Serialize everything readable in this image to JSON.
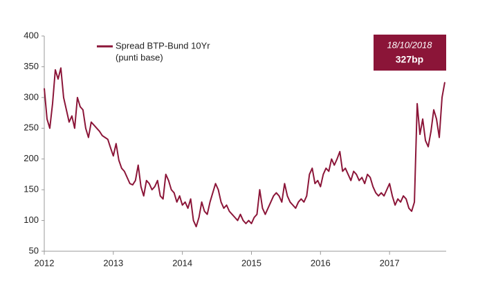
{
  "chart_data": {
    "type": "line",
    "series": [
      {
        "name": "Spread BTP-Bund 10Yr",
        "color": "#8b1538",
        "values": [
          315,
          265,
          250,
          290,
          345,
          330,
          348,
          300,
          280,
          260,
          270,
          250,
          300,
          285,
          280,
          250,
          235,
          260,
          255,
          250,
          245,
          238,
          235,
          232,
          218,
          205,
          225,
          198,
          185,
          180,
          170,
          160,
          158,
          165,
          190,
          155,
          140,
          165,
          160,
          150,
          155,
          165,
          140,
          135,
          175,
          165,
          150,
          145,
          130,
          140,
          125,
          130,
          120,
          135,
          100,
          90,
          105,
          130,
          115,
          110,
          130,
          145,
          160,
          150,
          130,
          120,
          125,
          115,
          110,
          105,
          100,
          110,
          100,
          95,
          100,
          95,
          105,
          110,
          150,
          120,
          110,
          120,
          130,
          140,
          145,
          140,
          130,
          160,
          140,
          130,
          125,
          120,
          130,
          135,
          130,
          140,
          175,
          185,
          160,
          165,
          155,
          175,
          185,
          180,
          200,
          190,
          200,
          212,
          180,
          185,
          175,
          165,
          180,
          175,
          165,
          170,
          160,
          175,
          170,
          155,
          145,
          140,
          145,
          140,
          150,
          160,
          140,
          125,
          135,
          130,
          140,
          135,
          120,
          115,
          130,
          290,
          240,
          265,
          230,
          220,
          245,
          280,
          265,
          235,
          300,
          325
        ]
      }
    ],
    "x": [
      2012,
      2012.04,
      2012.08,
      2012.12,
      2012.16,
      2012.2,
      2012.24,
      2012.28,
      2012.32,
      2012.36,
      2012.4,
      2012.44,
      2012.48,
      2012.52,
      2012.56,
      2012.6,
      2012.64,
      2012.68,
      2012.72,
      2012.76,
      2012.8,
      2012.84,
      2012.88,
      2012.92,
      2012.96,
      2013,
      2013.04,
      2013.08,
      2013.12,
      2013.16,
      2013.2,
      2013.24,
      2013.28,
      2013.32,
      2013.36,
      2013.4,
      2013.44,
      2013.48,
      2013.52,
      2013.56,
      2013.6,
      2013.64,
      2013.68,
      2013.72,
      2013.76,
      2013.8,
      2013.84,
      2013.88,
      2013.92,
      2013.96,
      2014,
      2014.04,
      2014.08,
      2014.12,
      2014.16,
      2014.2,
      2014.24,
      2014.28,
      2014.32,
      2014.36,
      2014.4,
      2014.44,
      2014.48,
      2014.52,
      2014.56,
      2014.6,
      2014.64,
      2014.68,
      2014.72,
      2014.76,
      2014.8,
      2014.84,
      2014.88,
      2014.92,
      2014.96,
      2015,
      2015.04,
      2015.08,
      2015.12,
      2015.16,
      2015.2,
      2015.24,
      2015.28,
      2015.32,
      2015.36,
      2015.4,
      2015.44,
      2015.48,
      2015.52,
      2015.56,
      2015.6,
      2015.64,
      2015.68,
      2015.72,
      2015.76,
      2015.8,
      2015.84,
      2015.88,
      2015.92,
      2015.96,
      2016,
      2016.04,
      2016.08,
      2016.12,
      2016.16,
      2016.2,
      2016.24,
      2016.28,
      2016.32,
      2016.36,
      2016.4,
      2016.44,
      2016.48,
      2016.52,
      2016.56,
      2016.6,
      2016.64,
      2016.68,
      2016.72,
      2016.76,
      2016.8,
      2016.84,
      2016.88,
      2016.92,
      2016.96,
      2017,
      2017.04,
      2017.08,
      2017.12,
      2017.16,
      2017.2,
      2017.24,
      2017.28,
      2017.32,
      2017.36,
      2017.4,
      2017.44,
      2017.48,
      2017.52,
      2017.56,
      2017.6,
      2017.64,
      2017.68,
      2017.72,
      2017.76,
      2017.8
    ],
    "legend_note": "(punti base)",
    "annotation": {
      "date": "18/10/2018",
      "value_label": "327bp",
      "color": "#8b1538"
    },
    "xlim": [
      2012,
      2017.82
    ],
    "xticks": [
      2012,
      2013,
      2014,
      2015,
      2016,
      2017
    ],
    "ylim": [
      50,
      400
    ],
    "yticks": [
      50,
      100,
      150,
      200,
      250,
      300,
      350,
      400
    ],
    "grid": false
  }
}
